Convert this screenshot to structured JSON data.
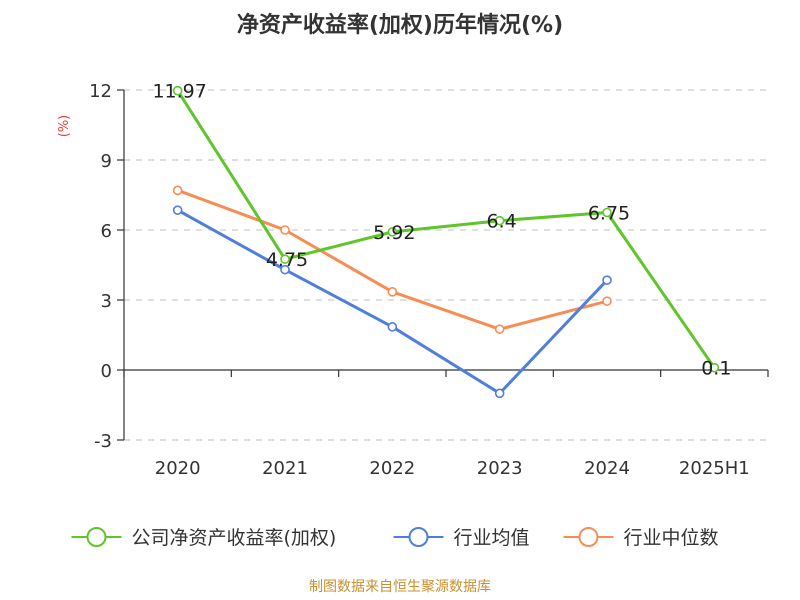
{
  "chart_data": {
    "type": "line",
    "title": "净资产收益率(加权)历年情况(%)",
    "unit_label": "(%)",
    "categories": [
      "2020",
      "2021",
      "2022",
      "2023",
      "2024",
      "2025H1"
    ],
    "ylim": [
      -3,
      12
    ],
    "yticks": [
      -3,
      0,
      3,
      6,
      9,
      12
    ],
    "ytick_labels": [
      "-3",
      "0",
      "3",
      "6",
      "9",
      "12"
    ],
    "grid": true,
    "legend_position": "bottom",
    "series": [
      {
        "name": "公司净资产收益率(加权)",
        "color": "#5fc52a",
        "values": [
          11.97,
          4.75,
          5.92,
          6.4,
          6.75,
          0.1
        ],
        "labels": [
          "11.97",
          "4.75",
          "5.92",
          "6.4",
          "6.75",
          "0.1"
        ]
      },
      {
        "name": "行业均值",
        "color": "#4f7fdc",
        "values": [
          6.85,
          4.3,
          1.85,
          -1.0,
          3.85,
          null
        ]
      },
      {
        "name": "行业中位数",
        "color": "#f78d55",
        "values": [
          7.7,
          6.0,
          3.35,
          1.75,
          2.95,
          null
        ]
      }
    ],
    "source": "制图数据来自恒生聚源数据库"
  }
}
